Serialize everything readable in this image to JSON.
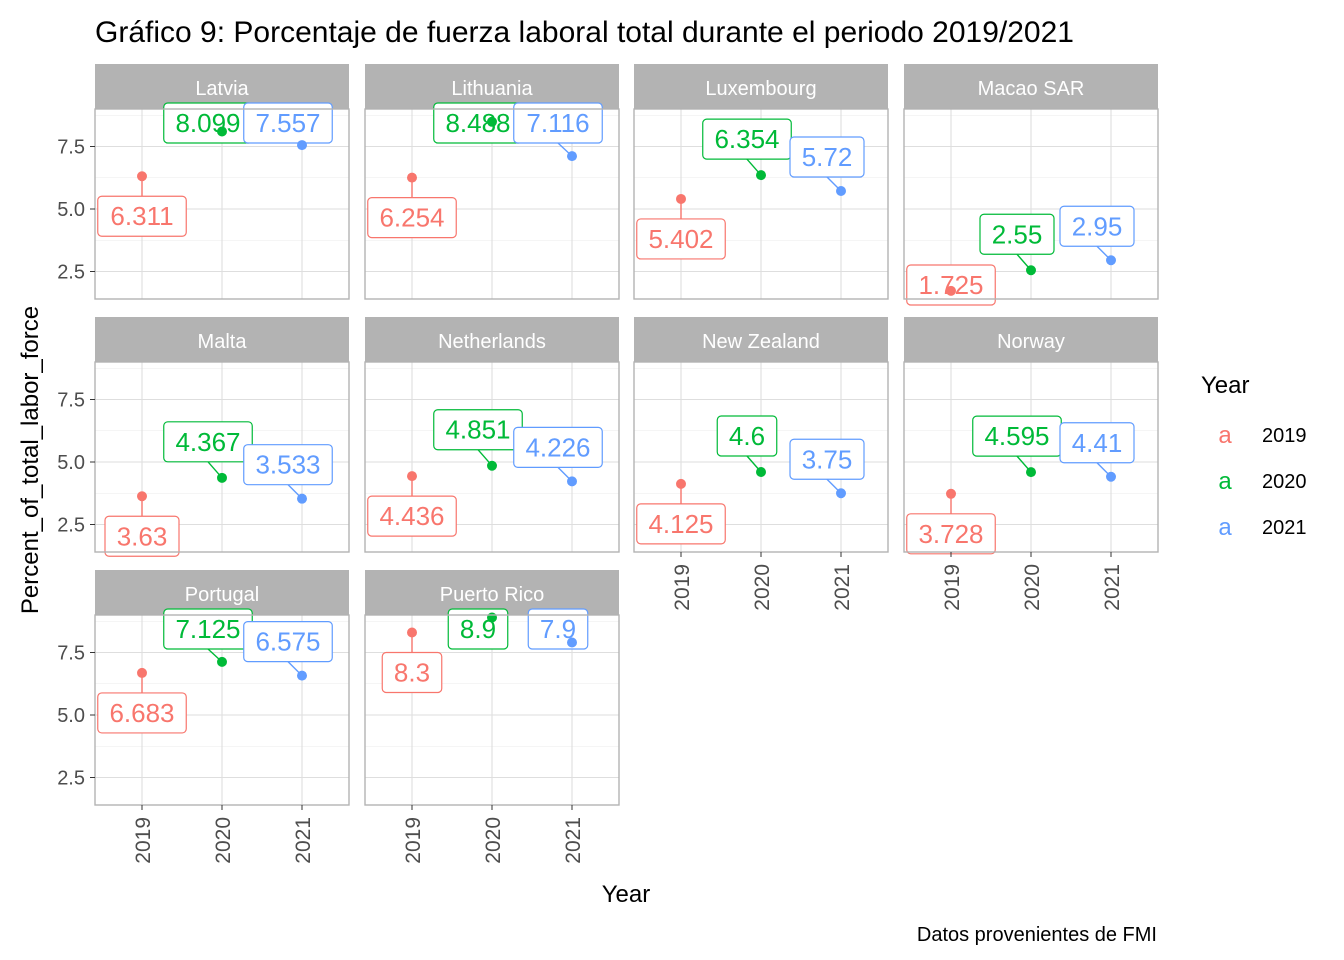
{
  "chart_data": {
    "type": "scatter",
    "title": "Gráfico 9: Porcentaje de fuerza laboral total durante el periodo 2019/2021",
    "caption": "Datos provenientes de FMI",
    "xlabel": "Year",
    "ylabel": "Percent_of_total_labor_force",
    "x_categories": [
      "2019",
      "2020",
      "2021"
    ],
    "y_ticks": [
      "2.5",
      "5.0",
      "7.5"
    ],
    "ylim": [
      1.4,
      9.0
    ],
    "grid": true,
    "legend": {
      "title": "Year",
      "position": "right",
      "glyph": "a",
      "entries": [
        {
          "label": "2019",
          "color": "#F8766D"
        },
        {
          "label": "2020",
          "color": "#00BA38"
        },
        {
          "label": "2021",
          "color": "#619CFF"
        }
      ]
    },
    "colors": {
      "2019": "#F8766D",
      "2020": "#00BA38",
      "2021": "#619CFF"
    },
    "panels": [
      {
        "name": "Latvia",
        "values": [
          6.311,
          8.099,
          7.557
        ],
        "labels": [
          "6.311",
          "8.099",
          "7.557"
        ]
      },
      {
        "name": "Lithuania",
        "values": [
          6.254,
          8.488,
          7.116
        ],
        "labels": [
          "6.254",
          "8.488",
          "7.116"
        ]
      },
      {
        "name": "Luxembourg",
        "values": [
          5.402,
          6.354,
          5.72
        ],
        "labels": [
          "5.402",
          "6.354",
          "5.72"
        ]
      },
      {
        "name": "Macao SAR",
        "values": [
          1.725,
          2.55,
          2.95
        ],
        "labels": [
          "1.725",
          "2.55",
          "2.95"
        ]
      },
      {
        "name": "Malta",
        "values": [
          3.63,
          4.367,
          3.533
        ],
        "labels": [
          "3.63",
          "4.367",
          "3.533"
        ]
      },
      {
        "name": "Netherlands",
        "values": [
          4.436,
          4.851,
          4.226
        ],
        "labels": [
          "4.436",
          "4.851",
          "4.226"
        ]
      },
      {
        "name": "New Zealand",
        "values": [
          4.125,
          4.6,
          3.75
        ],
        "labels": [
          "4.125",
          "4.6",
          "3.75"
        ]
      },
      {
        "name": "Norway",
        "values": [
          3.728,
          4.595,
          4.41
        ],
        "labels": [
          "3.728",
          "4.595",
          "4.41"
        ]
      },
      {
        "name": "Portugal",
        "values": [
          6.683,
          7.125,
          6.575
        ],
        "labels": [
          "6.683",
          "7.125",
          "6.575"
        ]
      },
      {
        "name": "Puerto Rico",
        "values": [
          8.3,
          8.9,
          7.9
        ],
        "labels": [
          "8.3",
          "8.9",
          "7.9"
        ]
      }
    ]
  }
}
